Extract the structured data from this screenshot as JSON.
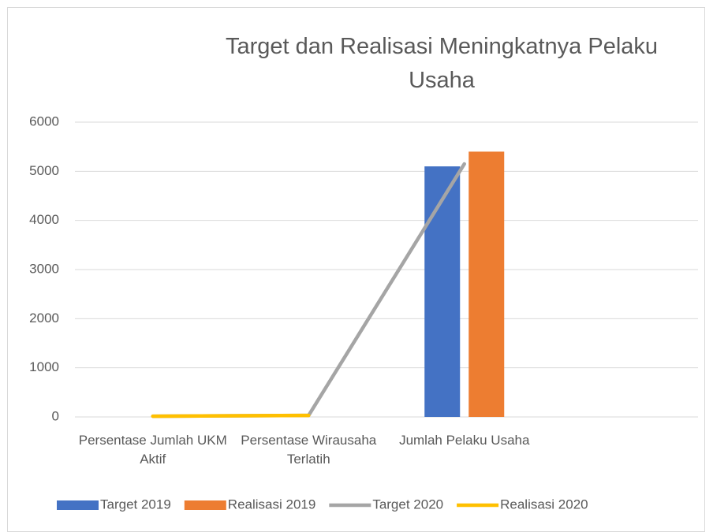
{
  "chart_data": {
    "type": "bar-line",
    "title": "Target dan Realisasi Meningkatnya Pelaku Usaha",
    "categories": [
      "Persentase Jumlah UKM Aktif",
      "Persentase Wirausaha Terlatih",
      "Jumlah Pelaku Usaha",
      null
    ],
    "series": [
      {
        "name": "Target 2019",
        "type": "bar",
        "color": "#4472c4",
        "values": [
          null,
          null,
          5100,
          null
        ]
      },
      {
        "name": "Realisasi 2019",
        "type": "bar",
        "color": "#ed7d31",
        "values": [
          null,
          null,
          5400,
          null
        ]
      },
      {
        "name": "Target 2020",
        "type": "line",
        "color": "#a5a5a5",
        "values": [
          15,
          30,
          5150,
          null
        ]
      },
      {
        "name": "Realisasi 2020",
        "type": "line",
        "color": "#ffc000",
        "values": [
          15,
          30,
          null,
          null
        ]
      }
    ],
    "ylim": [
      0,
      6000
    ],
    "yticks": [
      0,
      1000,
      2000,
      3000,
      4000,
      5000,
      6000
    ],
    "grid": true,
    "legend": "bottom"
  }
}
